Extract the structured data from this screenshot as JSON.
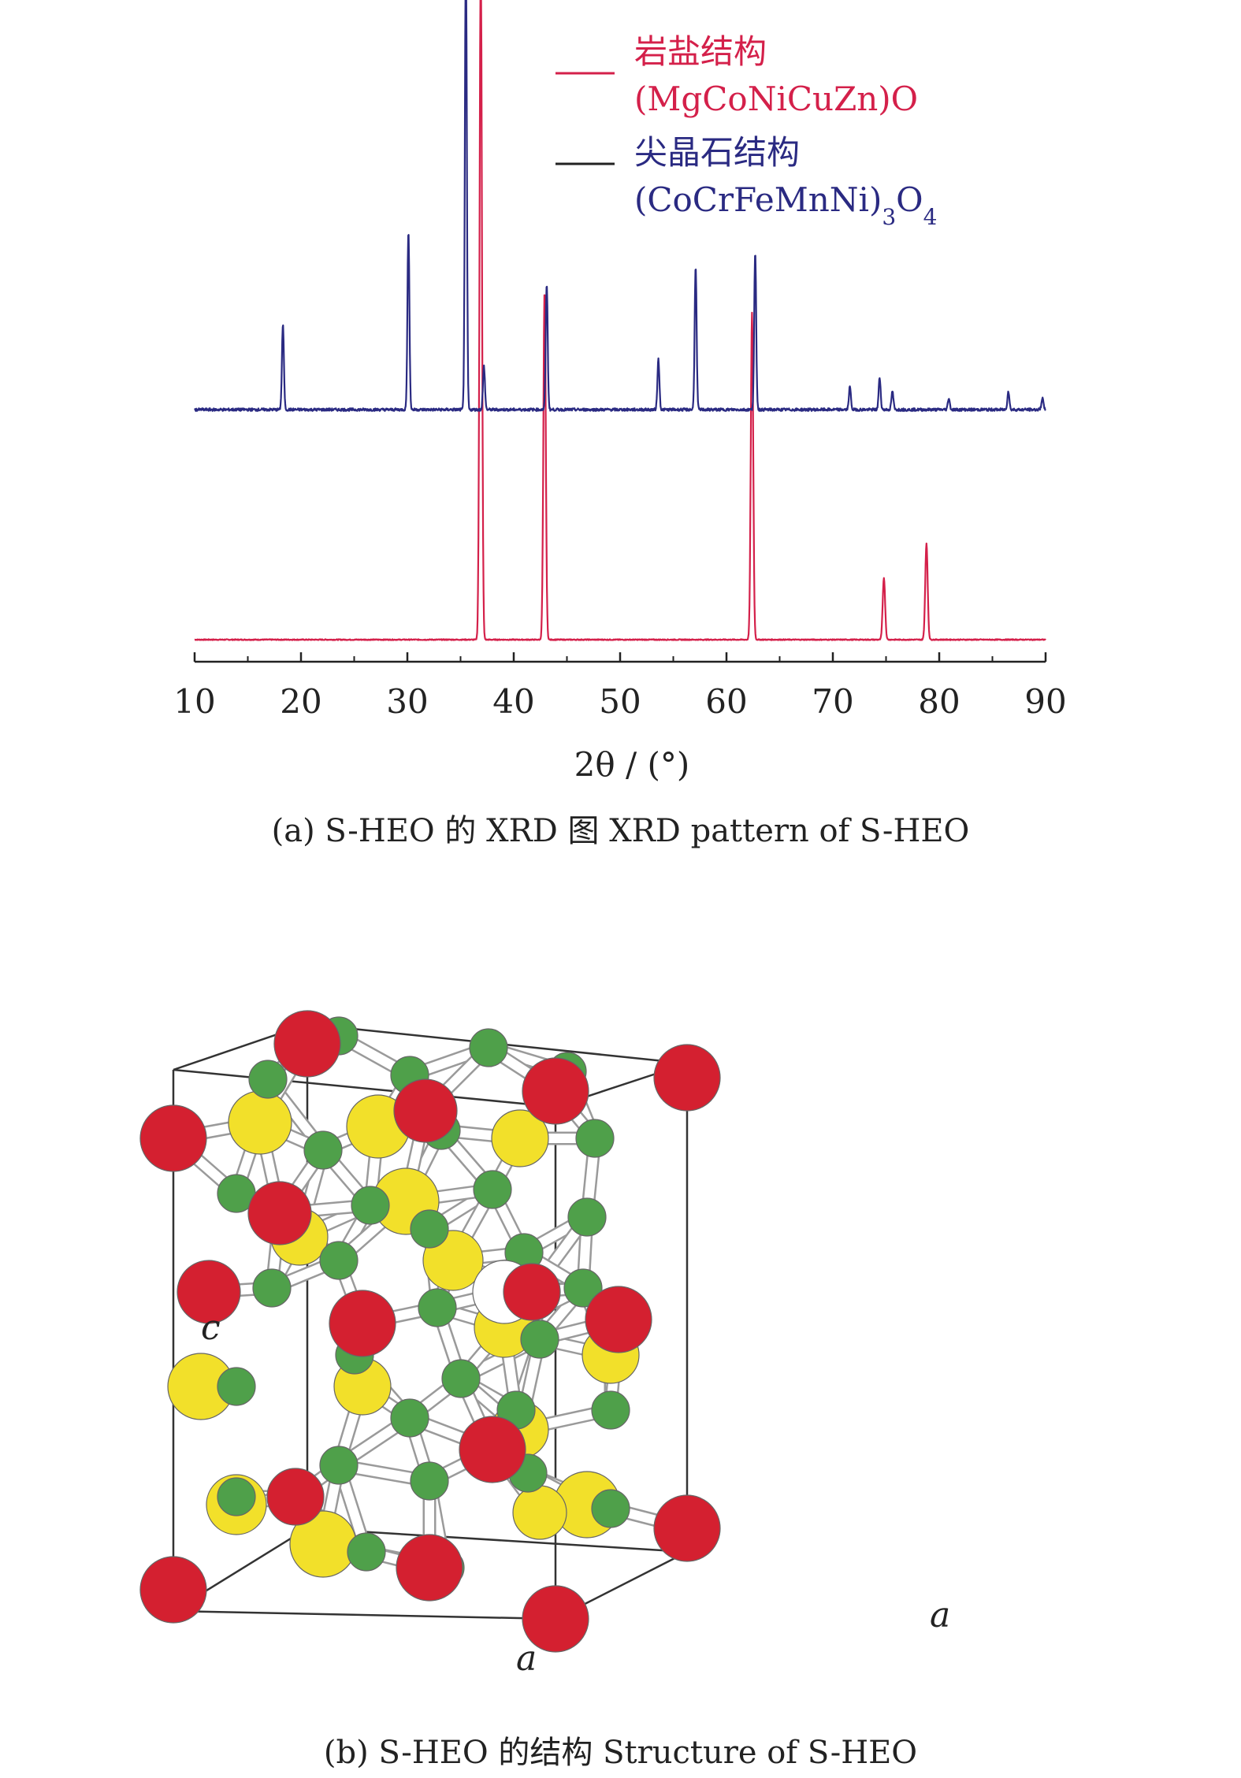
{
  "chart_data": {
    "type": "line",
    "xlabel": "2θ / (°)",
    "ylabel": "",
    "xlim": [
      10,
      90
    ],
    "xticks": [
      "10",
      "20",
      "30",
      "40",
      "50",
      "60",
      "70",
      "80",
      "90"
    ],
    "grid": false,
    "legend_position": "top-right",
    "series": [
      {
        "name": "岩盐结构",
        "formula": "(MgCoNiCuZn)O",
        "color": "#d4204a",
        "baseline": 0,
        "peaks": [
          [
            36.9,
            2.95
          ],
          [
            42.9,
            1.52
          ],
          [
            62.4,
            1.42
          ],
          [
            74.8,
            0.27
          ],
          [
            78.8,
            0.42
          ]
        ]
      },
      {
        "name": "尖晶石结构",
        "formula": "(CoCrFeMnNi)3O4",
        "color": "#2a2a82",
        "baseline": 1.0,
        "peaks": [
          [
            18.3,
            0.37
          ],
          [
            30.1,
            0.78
          ],
          [
            35.5,
            1.98
          ],
          [
            37.2,
            0.19
          ],
          [
            43.1,
            0.55
          ],
          [
            53.6,
            0.22
          ],
          [
            57.1,
            0.62
          ],
          [
            62.7,
            0.68
          ],
          [
            71.6,
            0.1
          ],
          [
            74.4,
            0.14
          ],
          [
            75.6,
            0.08
          ],
          [
            80.9,
            0.05
          ],
          [
            86.5,
            0.08
          ],
          [
            89.7,
            0.05
          ]
        ]
      }
    ]
  },
  "captions": {
    "a": "(a) S-HEO 的 XRD 图 XRD pattern of S-HEO",
    "b": "(b) S-HEO 的结构 Structure of S-HEO"
  },
  "structure": {
    "label_c": "c",
    "label_a_front": "a",
    "label_a_side": "a",
    "colors": {
      "oxygen": "#d42030",
      "tetra": "#f2e02a",
      "octa": "#4fa04a",
      "vacancy": "#ffffff"
    }
  }
}
